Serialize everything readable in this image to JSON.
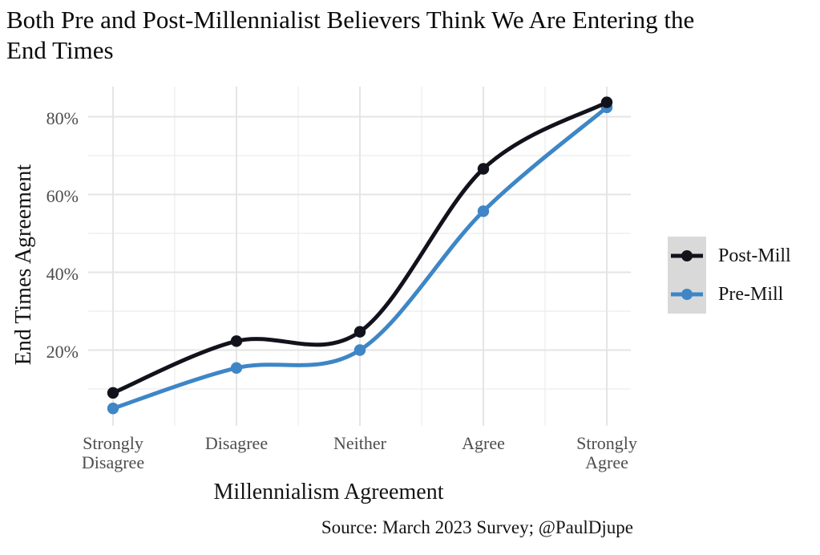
{
  "chart_data": {
    "type": "line",
    "title": "Both Pre and Post-Millennialist Believers Think We Are Entering the End Times",
    "xlabel": "Millennialism Agreement",
    "ylabel": "End Times Agreement",
    "caption": "Source: March 2023 Survey; @PaulDjupe",
    "categories": [
      "Strongly\nDisagree",
      "Disagree",
      "Neither",
      "Agree",
      "Strongly\nAgree"
    ],
    "series": [
      {
        "name": "Post-Mill",
        "color": "#12121C",
        "values": [
          9.0,
          22.3,
          24.7,
          66.6,
          83.7
        ]
      },
      {
        "name": "Pre-Mill",
        "color": "#3E86C6",
        "values": [
          5.0,
          15.4,
          20.0,
          55.7,
          82.4
        ]
      }
    ],
    "yticks": {
      "values": [
        20,
        40,
        60,
        80
      ],
      "labels": [
        "20%",
        "40%",
        "60%",
        "80%"
      ]
    },
    "yminor": [
      10,
      30,
      50,
      70
    ],
    "ylim": [
      0,
      88
    ],
    "grid": {
      "major_color": "#E4E4E4",
      "minor_color": "#ECECEC",
      "show_minor": true
    },
    "legend": {
      "position": "right",
      "key_fill": "#D9D9D9",
      "entries": [
        "Post-Mill",
        "Pre-Mill"
      ]
    },
    "axis_text_color": "#4D4D4D",
    "curve": "smooth"
  }
}
